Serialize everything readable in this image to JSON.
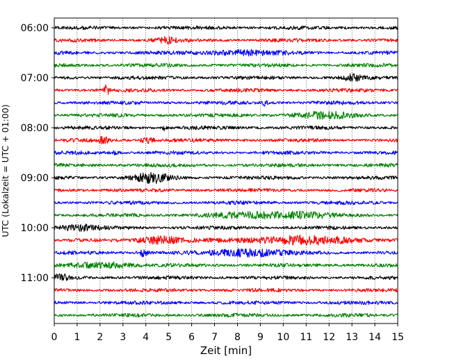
{
  "chart_data": {
    "type": "line",
    "title": "",
    "xlabel": "Zeit  [min]",
    "ylabel": "UTC (Lokalzeit = UTC + 01:00)",
    "xlim": [
      0,
      15
    ],
    "xticks": [
      0,
      1,
      2,
      3,
      4,
      5,
      6,
      7,
      8,
      9,
      10,
      11,
      12,
      13,
      14,
      15
    ],
    "x_grid": "dotted vertical lines at each minute",
    "ytick_labels": [
      "06:00",
      "07:00",
      "08:00",
      "09:00",
      "10:00",
      "11:00"
    ],
    "trace_interval_minutes": 15,
    "trace_start_times": [
      "06:00",
      "06:15",
      "06:30",
      "06:45",
      "07:00",
      "07:15",
      "07:30",
      "07:45",
      "08:00",
      "08:15",
      "08:30",
      "08:45",
      "09:00",
      "09:15",
      "09:30",
      "09:45",
      "10:00",
      "10:15",
      "10:30",
      "10:45",
      "11:00",
      "11:15",
      "11:30",
      "11:45"
    ],
    "color_cycle": [
      "#000000",
      "#ff0000",
      "#0000ff",
      "#008000"
    ],
    "legend": "none"
  }
}
